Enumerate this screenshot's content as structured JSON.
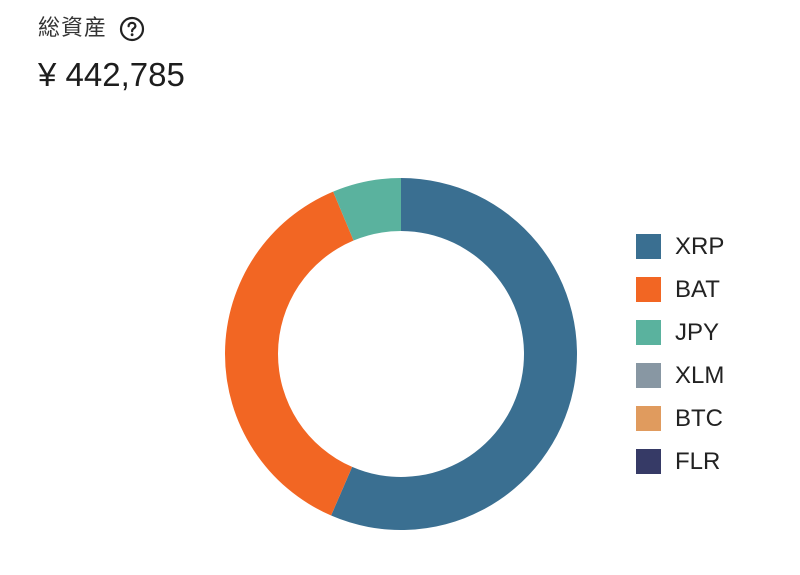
{
  "header": {
    "label": "総資産",
    "help_icon": "question-circle-icon",
    "total": "¥ 442,785"
  },
  "chart_data": {
    "type": "pie",
    "variant": "donut",
    "categories": [
      "XRP",
      "BAT",
      "JPY",
      "XLM",
      "BTC",
      "FLR"
    ],
    "values": [
      56.5,
      37.2,
      6.3,
      0,
      0,
      0
    ],
    "value_unit": "percent of total",
    "colors": [
      "#3a6f91",
      "#f26623",
      "#5ab29e",
      "#8897a3",
      "#e09b5e",
      "#363a66"
    ],
    "start_angle": "12 o'clock, clockwise",
    "legend_position": "right"
  }
}
